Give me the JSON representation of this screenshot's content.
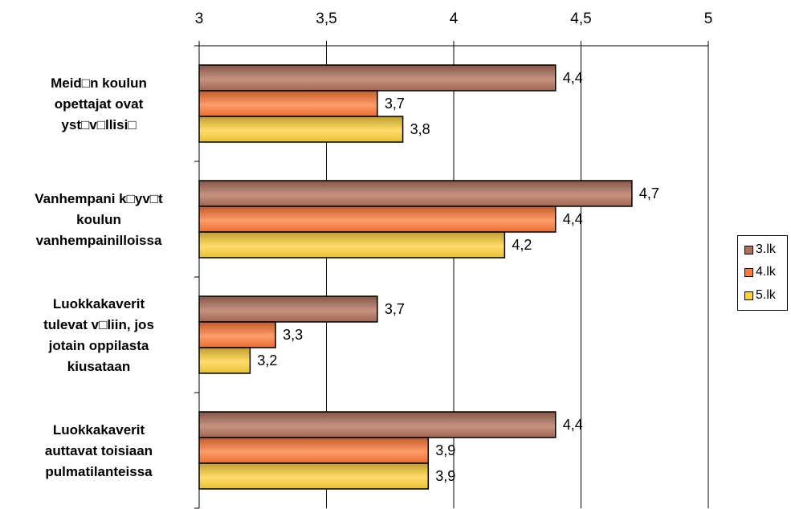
{
  "chart_data": {
    "type": "bar",
    "orientation": "horizontal",
    "categories": [
      [
        "Meid□n koulun",
        "opettajat ovat",
        "yst□v□llisi□"
      ],
      [
        "Vanhempani k□yv□t",
        "koulun",
        "vanhempainilloissa"
      ],
      [
        "Luokkakaverit",
        "tulevat v□liin, jos",
        "jotain oppilasta",
        "kiusataan"
      ],
      [
        "Luokkakaverit",
        "auttavat toisiaan",
        "pulmatilanteissa"
      ]
    ],
    "series": [
      {
        "name": "3.lk",
        "values": [
          4.4,
          4.7,
          3.7,
          4.4
        ],
        "labels": [
          "4,4",
          "4,7",
          "3,7",
          "4,4"
        ],
        "color": "#b0705a"
      },
      {
        "name": "4.lk",
        "values": [
          3.7,
          4.4,
          3.3,
          3.9
        ],
        "labels": [
          "3,7",
          "4,4",
          "3,3",
          "3,9"
        ],
        "color": "#ff7a3a"
      },
      {
        "name": "5.lk",
        "values": [
          3.8,
          4.2,
          3.2,
          3.9
        ],
        "labels": [
          "3,8",
          "4,2",
          "3,2",
          "3,9"
        ],
        "color": "#ffd23a"
      }
    ],
    "xlim": [
      3,
      5
    ],
    "xticks": [
      3,
      3.5,
      4,
      4.5,
      5
    ],
    "xtick_labels": [
      "3",
      "3,5",
      "4",
      "4,5",
      "5"
    ],
    "axis_position": "top",
    "grid": true,
    "legend": "right",
    "title": "",
    "xlabel": "",
    "ylabel": ""
  }
}
